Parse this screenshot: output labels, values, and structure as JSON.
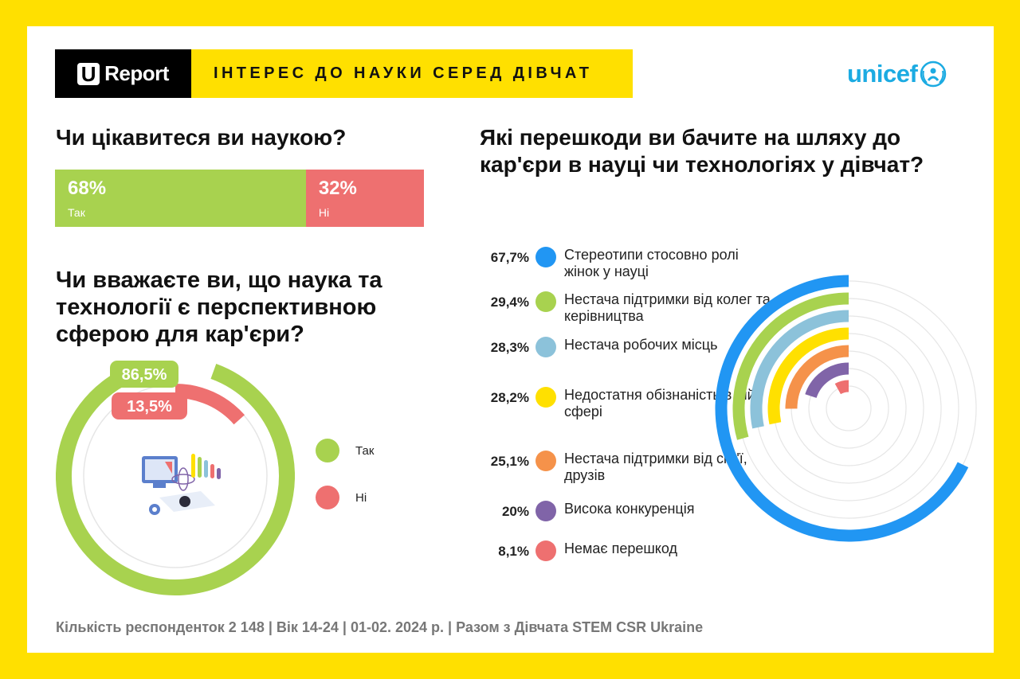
{
  "header": {
    "logo_letter": "U",
    "logo_text": "Report",
    "title": "ІНТЕРЕС ДО НАУКИ СЕРЕД ДІВЧАТ",
    "partner_logo": "unicef"
  },
  "colors": {
    "background": "#FFE000",
    "green": "#A8D24F",
    "red": "#EE7070",
    "blue": "#2196F3",
    "light_blue": "#8CC2DA",
    "yellow": "#FFE000",
    "orange": "#F5924A",
    "purple": "#8064A8",
    "track": "#E6E6E6"
  },
  "q1": {
    "question": "Чи цікавитеся ви наукою?"
  },
  "q2": {
    "question": "Чи вважаєте ви, що наука та технології є перспективною сферою для кар'єри?",
    "illustration": "science-lab-icon"
  },
  "q3": {
    "question": "Які перешкоди ви бачите на шляху до кар'єри в науці чи технологіях у дівчат?"
  },
  "footer": "Кількість респонденток 2 148 |  Вік 14-24 | 01-02. 2024 р. | Разом з Дівчата STEM CSR Ukraine",
  "chart_data": [
    {
      "type": "bar",
      "stacked": true,
      "orientation": "horizontal",
      "categories": [
        "Так",
        "Ні"
      ],
      "values": [
        68,
        32
      ],
      "labels": [
        "68%",
        "32%"
      ],
      "colors": [
        "#A8D24F",
        "#EE7070"
      ]
    },
    {
      "type": "pie",
      "style": "radial-donut",
      "categories": [
        "Так",
        "Ні"
      ],
      "values": [
        86.5,
        13.5
      ],
      "labels": [
        "86,5%",
        "13,5%"
      ],
      "colors": [
        "#A8D24F",
        "#EE7070"
      ],
      "legend": "right"
    },
    {
      "type": "bar",
      "style": "radial-bar",
      "categories": [
        "Стереотипи стосовно ролі жінок у  науці",
        "Нестача  підтримки від колег та керівництва",
        "Нестача робочих місць",
        "Недостатня обізнаність в цій сфері",
        "Нестача підтримки від сім'ї,  друзів",
        "Висока  конкуренція",
        "Немає перешкод"
      ],
      "values": [
        67.7,
        29.4,
        28.3,
        28.2,
        25.1,
        20,
        8.1
      ],
      "labels": [
        "67,7%",
        "29,4%",
        "28,3%",
        "28,2%",
        "25,1%",
        "20%",
        "8,1%"
      ],
      "colors": [
        "#2196F3",
        "#A8D24F",
        "#8CC2DA",
        "#FFE000",
        "#F5924A",
        "#8064A8",
        "#EE7070"
      ],
      "legend": "left"
    }
  ]
}
